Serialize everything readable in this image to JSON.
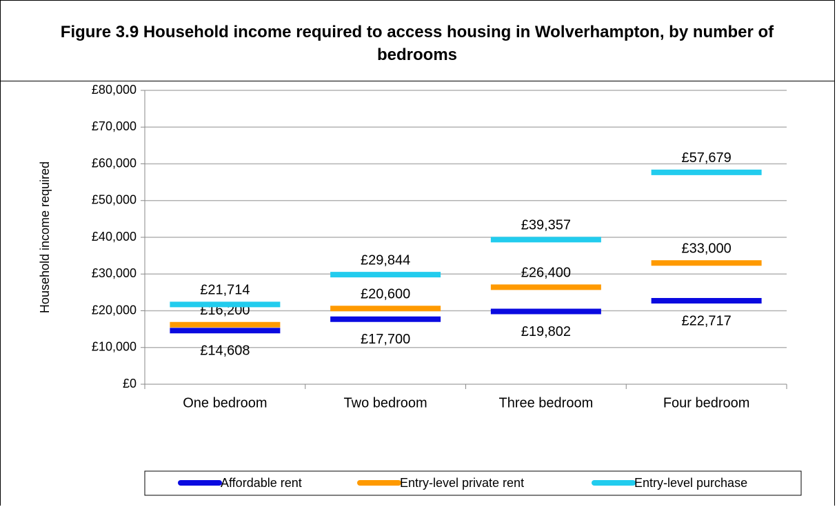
{
  "chart_data": {
    "type": "line",
    "title": "Figure 3.9 Household income required to access housing in Wolverhampton, by number of bedrooms",
    "y_label": "Household income required",
    "categories": [
      "One bedroom",
      "Two bedroom",
      "Three bedroom",
      "Four bedroom"
    ],
    "series": [
      {
        "name": "Affordable rent",
        "color": "#0a0ae0",
        "values": [
          14608,
          17700,
          19802,
          22717
        ],
        "value_labels": [
          "£14,608",
          "£17,700",
          "£19,802",
          "£22,717"
        ]
      },
      {
        "name": "Entry-level private rent",
        "color": "#ff9a00",
        "values": [
          16200,
          20600,
          26400,
          33000
        ],
        "value_labels": [
          "£16,200",
          "£20,600",
          "£26,400",
          "£33,000"
        ]
      },
      {
        "name": "Entry-level purchase",
        "color": "#22ccee",
        "values": [
          21714,
          29844,
          39357,
          57679
        ],
        "value_labels": [
          "£21,714",
          "£29,844",
          "£39,357",
          "£57,679"
        ]
      }
    ],
    "ylim": [
      0,
      80000
    ],
    "yticks": [
      {
        "value": 0,
        "label": "£0"
      },
      {
        "value": 10000,
        "label": "£10,000"
      },
      {
        "value": 20000,
        "label": "£20,000"
      },
      {
        "value": 30000,
        "label": "£30,000"
      },
      {
        "value": 40000,
        "label": "£40,000"
      },
      {
        "value": 50000,
        "label": "£50,000"
      },
      {
        "value": 60000,
        "label": "£60,000"
      },
      {
        "value": 70000,
        "label": "£70,000"
      },
      {
        "value": 80000,
        "label": "£80,000"
      }
    ],
    "grid": true,
    "legend": "bottom"
  }
}
